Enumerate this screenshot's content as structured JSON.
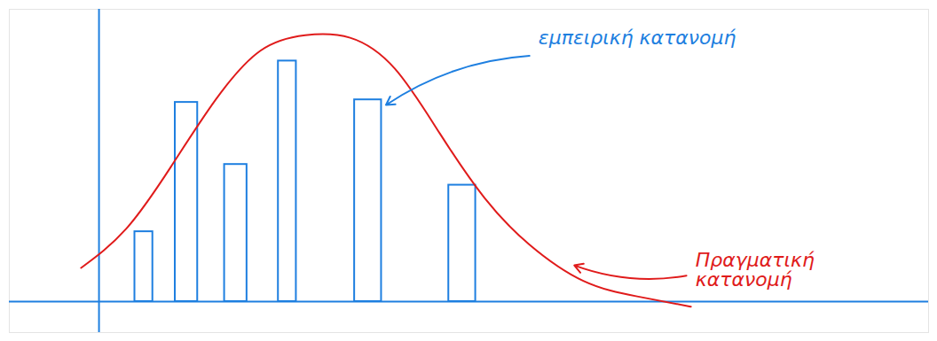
{
  "chart_data": {
    "type": "bar",
    "series": [
      {
        "name": "εμπειρική κατανομή",
        "type": "bar",
        "color": "#1e7fe0",
        "x_start": [
          0.8,
          1.7,
          2.8,
          4.0,
          5.7,
          7.8
        ],
        "x_end": [
          1.2,
          2.2,
          3.3,
          4.4,
          6.3,
          8.4
        ],
        "values": [
          2.7,
          7.7,
          5.3,
          9.3,
          7.8,
          4.5
        ]
      },
      {
        "name": "Πραγματική κατανομή",
        "type": "line",
        "color": "#e01b1b",
        "x": [
          -0.4,
          0.6,
          1.6,
          2.6,
          3.6,
          4.6,
          5.6,
          6.6,
          7.6,
          8.6,
          9.6,
          10.8,
          12.0,
          13.2
        ],
        "values": [
          1.3,
          2.8,
          5.2,
          7.8,
          9.7,
          10.3,
          10.2,
          9.0,
          6.5,
          4.0,
          2.2,
          0.8,
          0.2,
          -0.2
        ]
      }
    ],
    "xlim": [
      -2,
      18.5
    ],
    "ylim": [
      -1.2,
      11.3
    ],
    "xticks": [],
    "yticks": [],
    "tick_labels": false,
    "grid": false
  }
}
